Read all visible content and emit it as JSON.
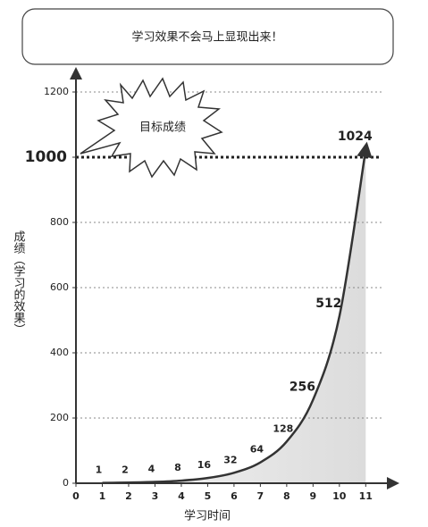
{
  "chart_data": {
    "type": "line",
    "title": "学习效果不会马上显现出来！",
    "x_label": "学习时间",
    "y_label": "成绩（学习的效果）",
    "x": [
      1,
      2,
      3,
      4,
      5,
      6,
      7,
      8,
      9,
      10,
      11
    ],
    "values": [
      1,
      2,
      4,
      8,
      16,
      32,
      64,
      128,
      256,
      512,
      1024
    ],
    "color": "#333333",
    "xlim": [
      0,
      11.6
    ],
    "xticks": [
      0,
      1,
      2,
      3,
      4,
      5,
      6,
      7,
      8,
      9,
      10,
      11
    ],
    "ylim": [
      0,
      1200
    ],
    "yticks": [
      0,
      200,
      400,
      600,
      800,
      1000,
      1200
    ],
    "grid": true,
    "target": {
      "value": 1000,
      "label": "目标成绩"
    }
  }
}
